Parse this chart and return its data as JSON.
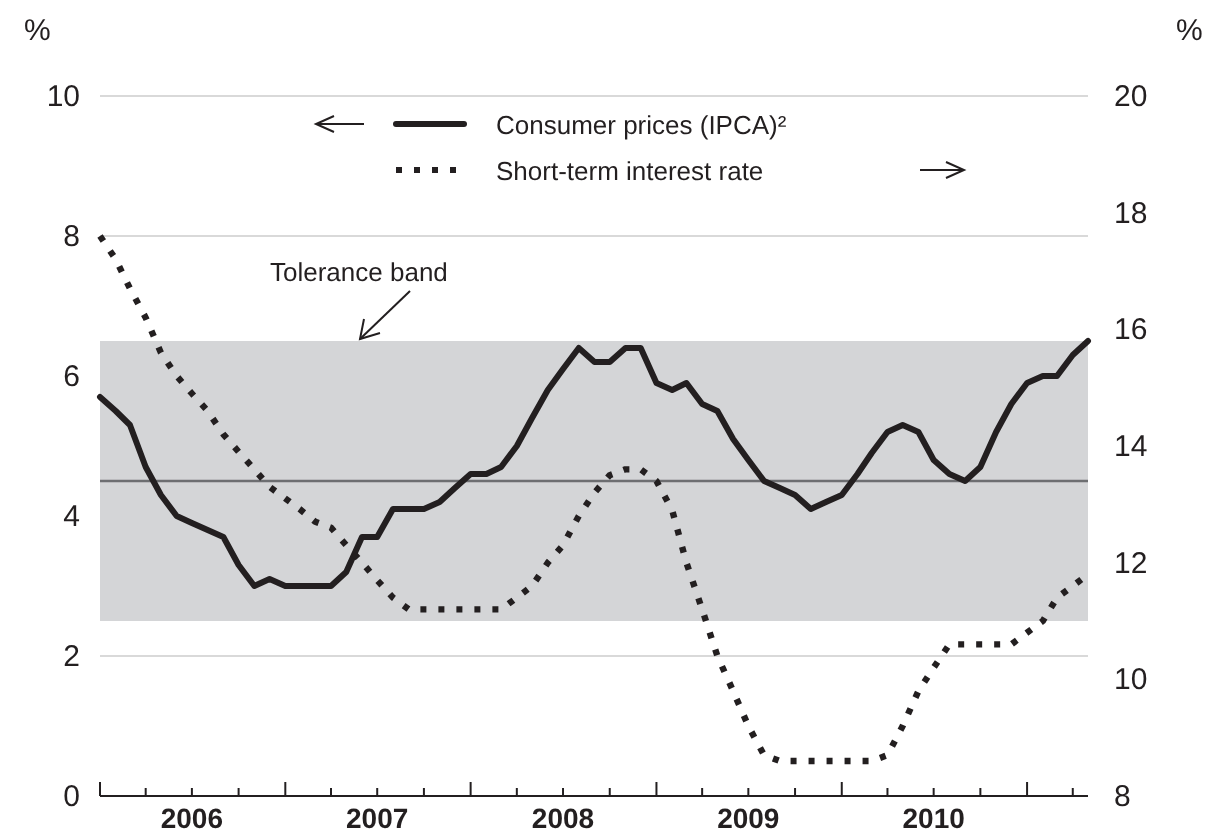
{
  "chart_data": {
    "type": "line",
    "ylabel": "%",
    "y2label": "%",
    "x": [
      "2006-01",
      "2006-02",
      "2006-03",
      "2006-04",
      "2006-05",
      "2006-06",
      "2006-07",
      "2006-08",
      "2006-09",
      "2006-10",
      "2006-11",
      "2006-12",
      "2007-01",
      "2007-02",
      "2007-03",
      "2007-04",
      "2007-05",
      "2007-06",
      "2007-07",
      "2007-08",
      "2007-09",
      "2007-10",
      "2007-11",
      "2007-12",
      "2008-01",
      "2008-02",
      "2008-03",
      "2008-04",
      "2008-05",
      "2008-06",
      "2008-07",
      "2008-08",
      "2008-09",
      "2008-10",
      "2008-11",
      "2008-12",
      "2009-01",
      "2009-02",
      "2009-03",
      "2009-04",
      "2009-05",
      "2009-06",
      "2009-07",
      "2009-08",
      "2009-09",
      "2009-10",
      "2009-11",
      "2009-12",
      "2010-01",
      "2010-02",
      "2010-03",
      "2010-04",
      "2010-05",
      "2010-06",
      "2010-07",
      "2010-08",
      "2010-09",
      "2010-10",
      "2010-11",
      "2010-12",
      "2011-01",
      "2011-02",
      "2011-03",
      "2011-04",
      "2011-05"
    ],
    "series": [
      {
        "name": "Consumer prices (IPCA)²",
        "color": "#231f20",
        "axis": "y",
        "line_style": "solid",
        "values": [
          5.7,
          5.5,
          5.3,
          4.7,
          4.3,
          4.0,
          3.9,
          3.8,
          3.7,
          3.3,
          3.0,
          3.1,
          3.0,
          3.0,
          3.0,
          3.0,
          3.2,
          3.7,
          3.7,
          4.1,
          4.1,
          4.1,
          4.2,
          4.4,
          4.6,
          4.6,
          4.7,
          5.0,
          5.4,
          5.8,
          6.1,
          6.4,
          6.2,
          6.2,
          6.4,
          6.4,
          5.9,
          5.8,
          5.9,
          5.6,
          5.5,
          5.1,
          4.8,
          4.5,
          4.4,
          4.3,
          4.1,
          4.2,
          4.3,
          4.6,
          4.9,
          5.2,
          5.3,
          5.2,
          4.8,
          4.6,
          4.5,
          4.7,
          5.2,
          5.6,
          5.9,
          6.0,
          6.0,
          6.3,
          6.5
        ]
      },
      {
        "name": "Short-term interest rate",
        "color": "#231f20",
        "axis": "y2",
        "line_style": "dotted",
        "values": [
          17.6,
          17.2,
          16.7,
          16.2,
          15.6,
          15.2,
          14.9,
          14.6,
          14.2,
          13.9,
          13.6,
          13.3,
          13.1,
          12.9,
          12.7,
          12.6,
          12.3,
          12.0,
          11.7,
          11.4,
          11.2,
          11.2,
          11.2,
          11.2,
          11.2,
          11.2,
          11.2,
          11.4,
          11.6,
          12.0,
          12.3,
          12.8,
          13.2,
          13.5,
          13.6,
          13.6,
          13.4,
          12.9,
          12.0,
          11.2,
          10.4,
          9.8,
          9.2,
          8.7,
          8.6,
          8.6,
          8.6,
          8.6,
          8.6,
          8.6,
          8.6,
          8.7,
          9.2,
          9.8,
          10.2,
          10.6,
          10.6,
          10.6,
          10.6,
          10.6,
          10.8,
          11.0,
          11.4,
          11.6,
          11.8
        ]
      }
    ],
    "xlim": [
      "2006-01",
      "2011-05"
    ],
    "xticks": [
      {
        "value": "2006-01",
        "label": null
      },
      {
        "value": "2006-04",
        "label": null
      },
      {
        "value": "2006-07",
        "label": "2006"
      },
      {
        "value": "2006-10",
        "label": null
      },
      {
        "value": "2007-01",
        "label": null
      },
      {
        "value": "2007-04",
        "label": null
      },
      {
        "value": "2007-07",
        "label": "2007"
      },
      {
        "value": "2007-10",
        "label": null
      },
      {
        "value": "2008-01",
        "label": null
      },
      {
        "value": "2008-04",
        "label": null
      },
      {
        "value": "2008-07",
        "label": "2008"
      },
      {
        "value": "2008-10",
        "label": null
      },
      {
        "value": "2009-01",
        "label": null
      },
      {
        "value": "2009-04",
        "label": null
      },
      {
        "value": "2009-07",
        "label": "2009"
      },
      {
        "value": "2009-10",
        "label": null
      },
      {
        "value": "2010-01",
        "label": null
      },
      {
        "value": "2010-04",
        "label": null
      },
      {
        "value": "2010-07",
        "label": "2010"
      },
      {
        "value": "2010-10",
        "label": null
      },
      {
        "value": "2011-01",
        "label": null
      },
      {
        "value": "2011-04",
        "label": null
      }
    ],
    "ylim": [
      0,
      10
    ],
    "yticks": [
      0,
      2,
      4,
      6,
      8,
      10
    ],
    "y2lim": [
      8,
      20
    ],
    "y2ticks": [
      8,
      10,
      12,
      14,
      16,
      18,
      20
    ],
    "bands": [
      {
        "axis": "y",
        "from": 2.5,
        "to": 6.5,
        "label": "Tolerance band",
        "color": "#d4d5d7"
      }
    ],
    "ref_lines": [
      {
        "axis": "y",
        "value": 4.5,
        "color": "#6d6e71"
      }
    ],
    "grid": "y",
    "legend": "top"
  }
}
